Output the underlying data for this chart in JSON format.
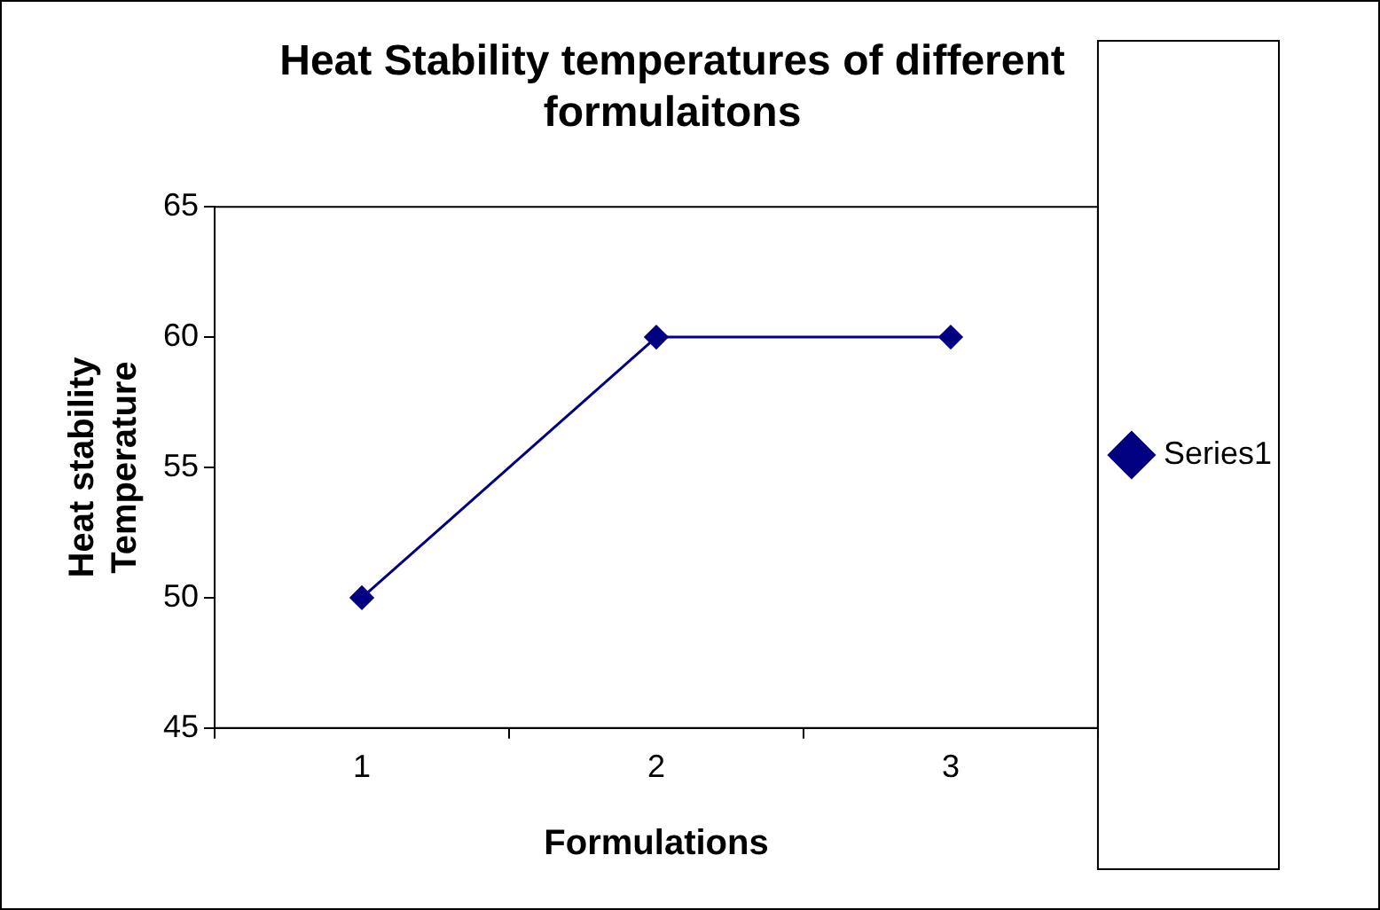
{
  "chart_data": {
    "type": "line",
    "title": "Heat Stability temperatures of different formulaitons",
    "xlabel": "Formulations",
    "ylabel": "Heat stability Temperature",
    "categories": [
      "1",
      "2",
      "3"
    ],
    "series": [
      {
        "name": "Series1",
        "color": "#000080",
        "values": [
          50,
          60,
          60
        ]
      }
    ],
    "ylim": [
      45,
      65
    ],
    "yticks": [
      45,
      50,
      55,
      60,
      65
    ],
    "grid": false,
    "legend": "right",
    "marker": "diamond",
    "line_style": "solid"
  }
}
